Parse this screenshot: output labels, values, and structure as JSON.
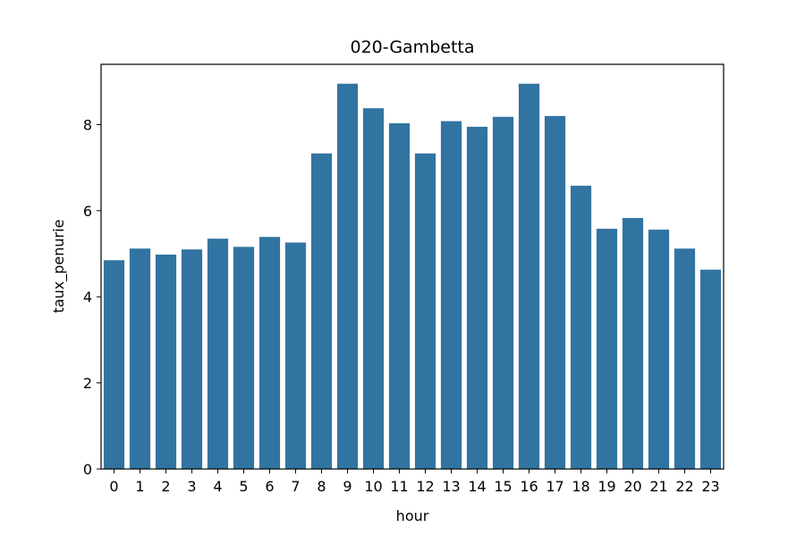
{
  "chart_data": {
    "type": "bar",
    "title": "020-Gambetta",
    "xlabel": "hour",
    "ylabel": "taux_penurie",
    "categories": [
      "0",
      "1",
      "2",
      "3",
      "4",
      "5",
      "6",
      "7",
      "8",
      "9",
      "10",
      "11",
      "12",
      "13",
      "14",
      "15",
      "16",
      "17",
      "18",
      "19",
      "20",
      "21",
      "22",
      "23"
    ],
    "values": [
      4.85,
      5.12,
      4.98,
      5.1,
      5.35,
      5.16,
      5.39,
      5.26,
      7.33,
      8.95,
      8.38,
      8.03,
      7.33,
      8.08,
      7.95,
      8.18,
      8.95,
      8.2,
      6.58,
      5.58,
      5.83,
      5.56,
      5.12,
      4.63
    ],
    "ylim": [
      0,
      9.4
    ],
    "yticks": [
      0,
      2,
      4,
      6,
      8
    ],
    "grid": false,
    "bar_color": "#3274a1"
  }
}
